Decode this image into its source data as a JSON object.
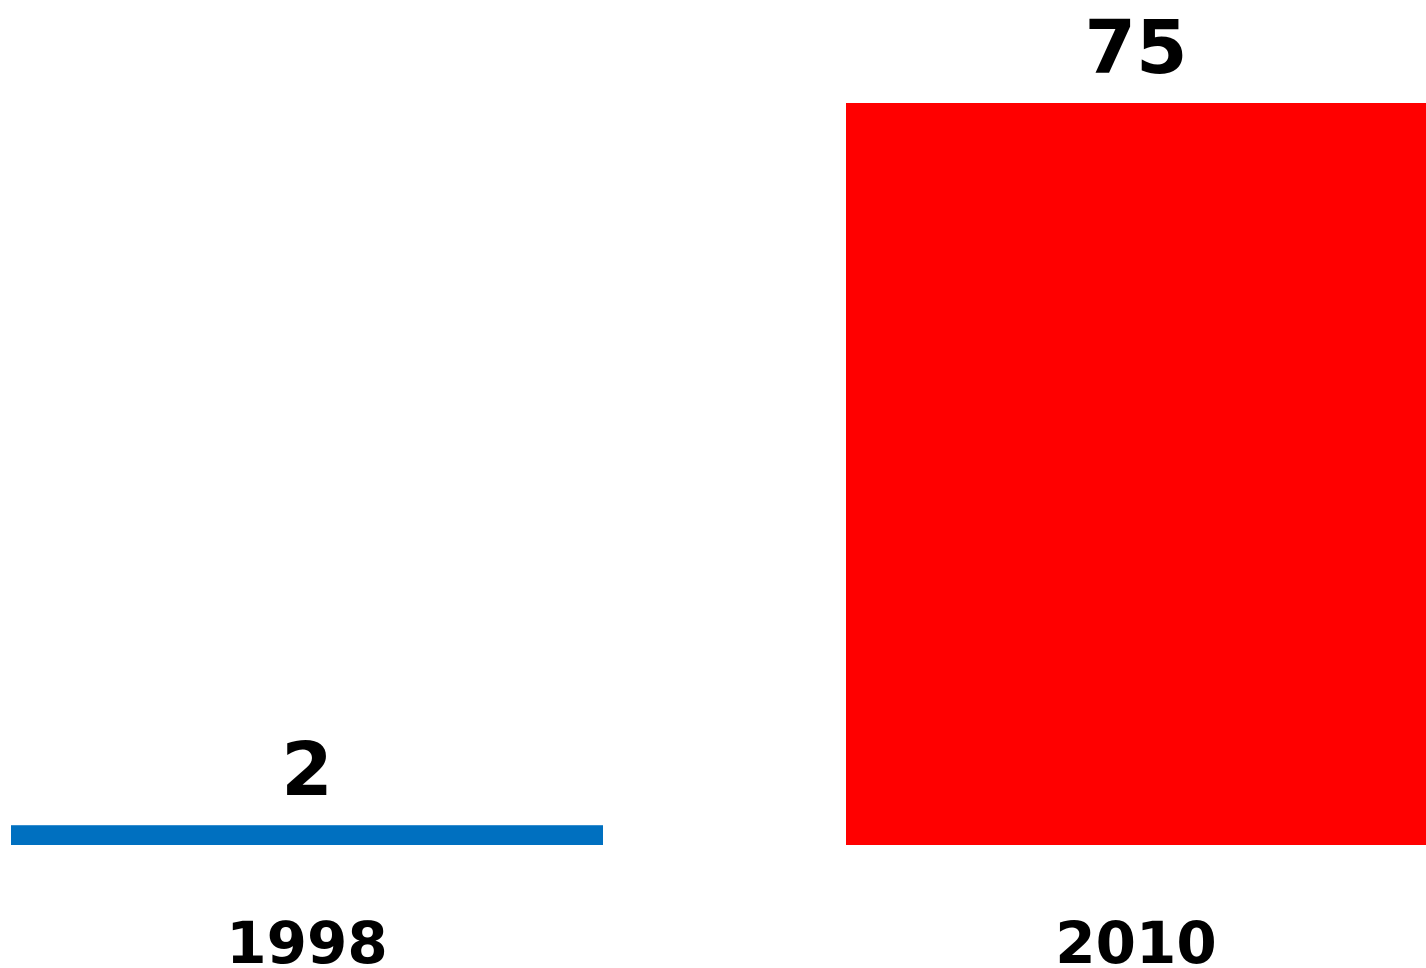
{
  "chart_data": {
    "type": "bar",
    "categories": [
      "1998",
      "2010"
    ],
    "values": [
      2,
      75
    ],
    "data_labels": [
      "2",
      "75"
    ],
    "colors": [
      "#0070C0",
      "#FF0000"
    ],
    "ylim": [
      0,
      75
    ],
    "grid": false,
    "title": "",
    "xlabel": "",
    "ylabel": ""
  }
}
